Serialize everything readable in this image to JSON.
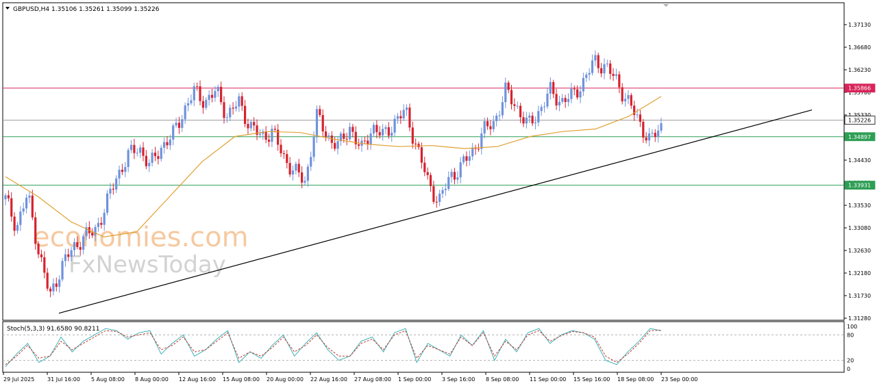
{
  "header": {
    "symbol_line": "GBPUSD,H4  1.35106 1.35261 1.35099 1.35226",
    "stoch_line": "Stoch(5,3,3) 91.6580 90.8211"
  },
  "watermark": {
    "line1": "economies.com",
    "line2": "FxNewsToday"
  },
  "colors": {
    "bull": "#6f92dc",
    "bear": "#d6222e",
    "ma": "#e0a030",
    "trend": "#000000",
    "resistance": "#d8245a",
    "support": "#2e9e55",
    "stoch_main": "#3fb0b8",
    "stoch_signal": "#c0392b"
  },
  "chart_data": [
    {
      "type": "candlestick",
      "title": "GBPUSD,H4",
      "ohlc_last": {
        "open": 1.35106,
        "high": 1.35261,
        "low": 1.35099,
        "close": 1.35226
      },
      "ylim": [
        1.3128,
        1.3758
      ],
      "y_ticks": [
        "1.37130",
        "1.36680",
        "1.36230",
        "1.35780",
        "1.35330",
        "1.34880",
        "1.34430",
        "1.33980",
        "1.33530",
        "1.33080",
        "1.32630",
        "1.32180",
        "1.31730",
        "1.31280"
      ],
      "x_ticks": [
        "29 Jul 2025",
        "31 Jul 16:00",
        "5 Aug 08:00",
        "8 Aug 00:00",
        "12 Aug 16:00",
        "15 Aug 08:00",
        "20 Aug 00:00",
        "22 Aug 16:00",
        "27 Aug 08:00",
        "1 Sep 00:00",
        "3 Sep 16:00",
        "8 Sep 08:00",
        "11 Sep 00:00",
        "15 Sep 16:00",
        "18 Sep 08:00",
        "23 Sep 00:00"
      ],
      "horizontal_levels": [
        {
          "value": 1.35866,
          "label": "1.35866",
          "role": "resistance"
        },
        {
          "value": 1.35226,
          "label": "1.35226",
          "role": "current"
        },
        {
          "value": 1.34897,
          "label": "1.34897",
          "role": "support"
        },
        {
          "value": 1.33931,
          "label": "1.33931",
          "role": "support"
        }
      ],
      "trendline": {
        "from": [
          "31 Jul 2025",
          1.3138
        ],
        "to": [
          "22 Sep 2025",
          1.3543
        ]
      },
      "close_path": [
        1.3365,
        1.331,
        1.3375,
        1.326,
        1.317,
        1.323,
        1.3265,
        1.329,
        1.33,
        1.335,
        1.341,
        1.345,
        1.347,
        1.343,
        1.347,
        1.349,
        1.354,
        1.358,
        1.356,
        1.358,
        1.353,
        1.356,
        1.351,
        1.349,
        1.35,
        1.345,
        1.342,
        1.34,
        1.353,
        1.349,
        1.347,
        1.351,
        1.346,
        1.351,
        1.349,
        1.352,
        1.354,
        1.347,
        1.34,
        1.336,
        1.341,
        1.343,
        1.346,
        1.35,
        1.352,
        1.358,
        1.355,
        1.351,
        1.354,
        1.358,
        1.356,
        1.357,
        1.36,
        1.364,
        1.363,
        1.36,
        1.356,
        1.352,
        1.348,
        1.351
      ],
      "ma_path": [
        1.341,
        1.337,
        1.332,
        1.329,
        1.33,
        1.337,
        1.344,
        1.349,
        1.35,
        1.3498,
        1.3485,
        1.3475,
        1.347,
        1.3472,
        1.3466,
        1.347,
        1.349,
        1.35,
        1.3505,
        1.353,
        1.357
      ],
      "ma_end_label": ""
    },
    {
      "type": "line",
      "title": "Stoch(5,3,3)",
      "ylim": [
        0,
        100
      ],
      "y_ticks": [
        "100",
        "80",
        "20",
        "0"
      ],
      "levels": [
        80,
        20
      ],
      "series": [
        {
          "name": "",
          "values": [
            5,
            35,
            60,
            15,
            30,
            75,
            40,
            65,
            80,
            95,
            90,
            70,
            85,
            90,
            35,
            60,
            80,
            30,
            45,
            70,
            90,
            15,
            40,
            25,
            55,
            80,
            30,
            60,
            85,
            45,
            20,
            30,
            65,
            75,
            40,
            85,
            95,
            15,
            60,
            45,
            30,
            80,
            55,
            90,
            20,
            70,
            40,
            85,
            95,
            60,
            80,
            90,
            85,
            70,
            20,
            10,
            40,
            65,
            95,
            90
          ]
        },
        {
          "name": "",
          "values": [
            10,
            30,
            55,
            25,
            30,
            65,
            45,
            60,
            75,
            90,
            88,
            75,
            80,
            85,
            45,
            55,
            75,
            40,
            45,
            65,
            85,
            25,
            40,
            30,
            50,
            75,
            40,
            55,
            80,
            50,
            30,
            30,
            60,
            70,
            45,
            80,
            90,
            25,
            55,
            45,
            35,
            75,
            55,
            85,
            30,
            65,
            45,
            80,
            90,
            65,
            78,
            88,
            85,
            75,
            30,
            15,
            35,
            60,
            90,
            91
          ]
        }
      ]
    }
  ]
}
